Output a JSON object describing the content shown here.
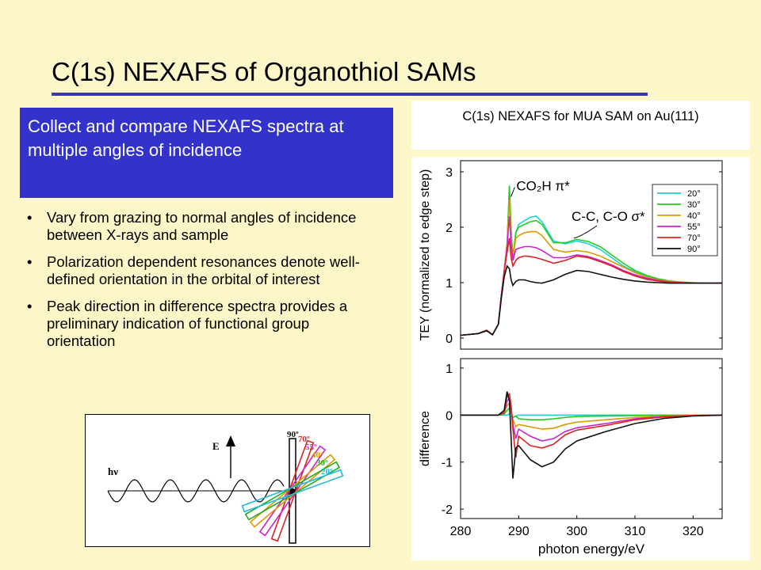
{
  "slide": {
    "title": "C(1s) NEXAFS of Organothiol SAMs",
    "callout": "Collect and compare NEXAFS spectra at multiple angles of incidence",
    "bullets": [
      "Vary from grazing to normal angles of incidence between X-rays and sample",
      "Polarization dependent resonances denote well-defined orientation in the orbital of interest",
      "Peak direction in difference spectra provides a preliminary indication of functional group orientation"
    ],
    "bullet_symbol": "•",
    "chart_caption": "C(1s) NEXAFS for MUA SAM on Au(111)"
  },
  "colors": {
    "background": "#fdf6c9",
    "callout_bg": "#3333cc",
    "title_rule": "#3a3aa6"
  },
  "chart_data": [
    {
      "type": "line",
      "title": "",
      "xlabel": "",
      "ylabel": "TEY (normalized to edge step)",
      "xlim": [
        280,
        325
      ],
      "ylim": [
        -0.2,
        3.2
      ],
      "yticks": [
        0,
        1,
        2,
        3
      ],
      "legend_position": "top-right",
      "annotations": [
        {
          "text": "CO₂H π*",
          "x": 288.5,
          "y": 2.75
        },
        {
          "text": "C-C, C-O σ*",
          "x": 298,
          "y": 2.2
        }
      ],
      "series": [
        {
          "name": "20°",
          "color": "#22d3d3",
          "x": [
            280,
            283,
            284.5,
            285.5,
            286.5,
            287,
            287.5,
            288,
            288.4,
            288.7,
            289,
            289.5,
            290,
            291,
            292,
            293,
            294,
            296,
            298,
            300,
            302,
            304,
            306,
            308,
            310,
            312,
            314,
            316,
            318,
            320,
            322,
            325
          ],
          "y": [
            0.05,
            0.08,
            0.14,
            0.06,
            0.25,
            0.75,
            1.2,
            1.7,
            2.7,
            1.9,
            1.45,
            1.9,
            2.05,
            2.12,
            2.18,
            2.2,
            2.1,
            1.75,
            1.7,
            1.75,
            1.7,
            1.6,
            1.45,
            1.3,
            1.2,
            1.12,
            1.06,
            1.02,
            1.0,
            0.99,
            0.99,
            0.99
          ]
        },
        {
          "name": "30°",
          "color": "#22cc22",
          "x": [
            280,
            283,
            284.5,
            285.5,
            286.5,
            287,
            287.5,
            288,
            288.4,
            288.7,
            289,
            289.5,
            290,
            291,
            292,
            293,
            294,
            296,
            298,
            300,
            302,
            304,
            306,
            308,
            310,
            312,
            314,
            316,
            318,
            320,
            322,
            325
          ],
          "y": [
            0.05,
            0.08,
            0.14,
            0.06,
            0.25,
            0.75,
            1.2,
            1.7,
            2.75,
            1.95,
            1.45,
            1.9,
            2.0,
            2.05,
            2.1,
            2.12,
            2.05,
            1.72,
            1.72,
            1.78,
            1.74,
            1.65,
            1.5,
            1.35,
            1.22,
            1.13,
            1.07,
            1.03,
            1.01,
            1.0,
            0.99,
            0.99
          ]
        },
        {
          "name": "40°",
          "color": "#dd9900",
          "x": [
            280,
            283,
            284.5,
            285.5,
            286.5,
            287,
            287.5,
            288,
            288.4,
            288.7,
            289,
            289.5,
            290,
            291,
            292,
            293,
            294,
            296,
            298,
            300,
            302,
            304,
            306,
            308,
            310,
            312,
            314,
            316,
            318,
            320,
            322,
            325
          ],
          "y": [
            0.05,
            0.08,
            0.14,
            0.06,
            0.25,
            0.75,
            1.2,
            1.7,
            2.5,
            1.85,
            1.45,
            1.8,
            1.85,
            1.9,
            1.92,
            1.92,
            1.85,
            1.6,
            1.55,
            1.58,
            1.55,
            1.48,
            1.38,
            1.28,
            1.18,
            1.1,
            1.05,
            1.02,
            1.0,
            0.99,
            0.99,
            0.99
          ]
        },
        {
          "name": "55°",
          "color": "#cc22cc",
          "x": [
            280,
            283,
            284.5,
            285.5,
            286.5,
            287,
            287.5,
            288,
            288.4,
            288.7,
            289,
            289.5,
            290,
            291,
            292,
            293,
            294,
            296,
            298,
            300,
            302,
            304,
            306,
            308,
            310,
            312,
            314,
            316,
            318,
            320,
            322,
            325
          ],
          "y": [
            0.05,
            0.08,
            0.14,
            0.06,
            0.25,
            0.75,
            1.2,
            1.65,
            2.2,
            1.7,
            1.4,
            1.6,
            1.62,
            1.65,
            1.65,
            1.63,
            1.58,
            1.45,
            1.45,
            1.5,
            1.47,
            1.4,
            1.32,
            1.22,
            1.14,
            1.08,
            1.04,
            1.01,
            1.0,
            0.99,
            0.99,
            0.99
          ]
        },
        {
          "name": "70°",
          "color": "#dd2222",
          "x": [
            280,
            283,
            284.5,
            285.5,
            286.5,
            287,
            287.5,
            288,
            288.4,
            288.7,
            289,
            289.5,
            290,
            291,
            292,
            293,
            294,
            296,
            298,
            300,
            302,
            304,
            306,
            308,
            310,
            312,
            314,
            316,
            318,
            320,
            322,
            325
          ],
          "y": [
            0.05,
            0.08,
            0.14,
            0.06,
            0.25,
            0.75,
            1.2,
            1.55,
            1.8,
            1.45,
            1.3,
            1.4,
            1.45,
            1.48,
            1.47,
            1.45,
            1.42,
            1.35,
            1.4,
            1.48,
            1.45,
            1.38,
            1.3,
            1.2,
            1.12,
            1.06,
            1.03,
            1.01,
            1.0,
            0.99,
            0.99,
            0.99
          ]
        },
        {
          "name": "90°",
          "color": "#111111",
          "x": [
            280,
            283,
            284.5,
            285.5,
            286.5,
            287,
            287.5,
            288,
            288.4,
            288.7,
            289,
            289.5,
            290,
            291,
            292,
            293,
            294,
            296,
            298,
            300,
            302,
            304,
            306,
            308,
            310,
            312,
            314,
            316,
            318,
            320,
            322,
            325
          ],
          "y": [
            0.05,
            0.08,
            0.13,
            0.06,
            0.25,
            0.7,
            1.1,
            1.3,
            1.25,
            1.05,
            0.95,
            1.02,
            1.05,
            1.05,
            1.02,
            1.0,
            0.99,
            1.05,
            1.15,
            1.22,
            1.2,
            1.15,
            1.1,
            1.06,
            1.03,
            1.01,
            1.0,
            0.99,
            0.99,
            0.99,
            0.99,
            0.99
          ]
        }
      ]
    },
    {
      "type": "line",
      "title": "",
      "xlabel": "photon energy/eV",
      "ylabel": "difference",
      "xlim": [
        280,
        325
      ],
      "ylim": [
        -2.2,
        1.2
      ],
      "xticks": [
        280,
        290,
        300,
        310,
        320
      ],
      "yticks": [
        -2,
        -1,
        0,
        1
      ],
      "series": [
        {
          "name": "20°",
          "color": "#22d3d3",
          "x": [
            280,
            285,
            286.5,
            287.5,
            288,
            288.4,
            288.7,
            289,
            289.5,
            290,
            292,
            294,
            296,
            298,
            300,
            305,
            310,
            315,
            320,
            325
          ],
          "y": [
            0,
            0,
            0,
            0,
            0,
            0.02,
            -0.02,
            -0.05,
            -0.02,
            0,
            0,
            0,
            0,
            0,
            0,
            0,
            0,
            0,
            0,
            0
          ]
        },
        {
          "name": "30°",
          "color": "#22cc22",
          "x": [
            280,
            285,
            286.5,
            287.5,
            288,
            288.4,
            288.7,
            289,
            289.5,
            290,
            292,
            294,
            296,
            298,
            300,
            305,
            310,
            315,
            320,
            325
          ],
          "y": [
            0,
            0,
            0,
            0.02,
            0.1,
            0.15,
            0.05,
            -0.05,
            -0.02,
            -0.08,
            -0.1,
            -0.1,
            -0.08,
            -0.05,
            -0.03,
            -0.02,
            -0.01,
            0,
            0,
            0
          ]
        },
        {
          "name": "40°",
          "color": "#dd9900",
          "x": [
            280,
            285,
            286.5,
            287.5,
            288,
            288.4,
            288.7,
            289,
            289.5,
            290,
            292,
            294,
            296,
            298,
            300,
            305,
            310,
            315,
            320,
            325
          ],
          "y": [
            0,
            0,
            0,
            0.05,
            0.2,
            0.25,
            0.1,
            -0.1,
            -0.25,
            -0.2,
            -0.25,
            -0.3,
            -0.28,
            -0.2,
            -0.15,
            -0.1,
            -0.05,
            -0.02,
            0,
            0
          ]
        },
        {
          "name": "55°",
          "color": "#cc22cc",
          "x": [
            280,
            285,
            286.5,
            287.5,
            288,
            288.4,
            288.7,
            289,
            289.5,
            290,
            292,
            294,
            296,
            298,
            300,
            305,
            310,
            315,
            320,
            325
          ],
          "y": [
            0,
            0,
            0,
            0.05,
            0.3,
            0.35,
            0.15,
            -0.2,
            -0.5,
            -0.3,
            -0.45,
            -0.55,
            -0.5,
            -0.35,
            -0.27,
            -0.18,
            -0.08,
            -0.03,
            -0.01,
            0
          ]
        },
        {
          "name": "70°",
          "color": "#dd2222",
          "x": [
            280,
            285,
            286.5,
            287.5,
            288,
            288.4,
            288.7,
            289,
            289.5,
            290,
            292,
            294,
            296,
            298,
            300,
            305,
            310,
            315,
            320,
            325
          ],
          "y": [
            0,
            0,
            0,
            0.05,
            0.4,
            0.45,
            0.2,
            -0.3,
            -0.9,
            -0.45,
            -0.65,
            -0.7,
            -0.62,
            -0.42,
            -0.32,
            -0.22,
            -0.1,
            -0.04,
            -0.01,
            0
          ]
        },
        {
          "name": "90°",
          "color": "#111111",
          "x": [
            280,
            285,
            286.5,
            287.5,
            288,
            288.4,
            288.7,
            289,
            289.5,
            290,
            292,
            294,
            296,
            298,
            300,
            305,
            310,
            315,
            320,
            325
          ],
          "y": [
            0,
            0,
            0,
            0.1,
            0.5,
            0.3,
            -0.5,
            -1.35,
            -0.7,
            -0.65,
            -0.95,
            -1.1,
            -1.0,
            -0.72,
            -0.55,
            -0.35,
            -0.18,
            -0.07,
            -0.02,
            0
          ]
        }
      ]
    }
  ],
  "diagram": {
    "field_label": "E",
    "photon_label": "hν",
    "angles": [
      {
        "label": "90º",
        "color": "#111111"
      },
      {
        "label": "70º",
        "color": "#dd2222"
      },
      {
        "label": "55º",
        "color": "#cc22cc"
      },
      {
        "label": "40º",
        "color": "#dd9900"
      },
      {
        "label": "30º",
        "color": "#22aa22"
      },
      {
        "label": "20º",
        "color": "#22bbdd"
      }
    ]
  }
}
